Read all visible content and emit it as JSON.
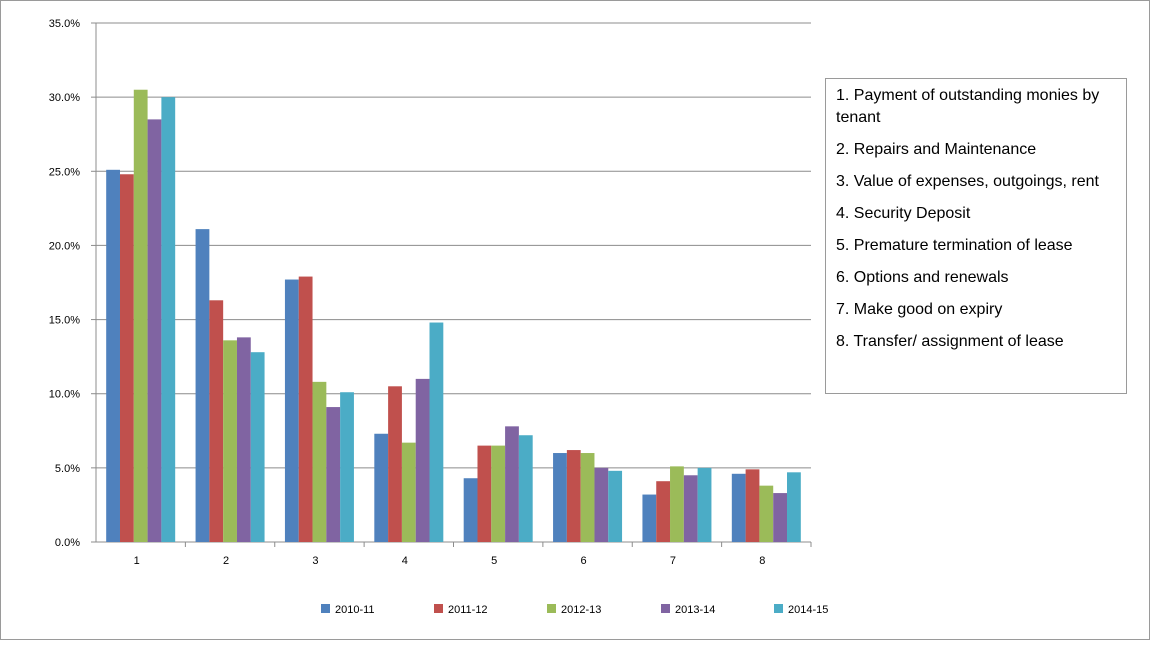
{
  "chart_data": {
    "type": "bar",
    "categories": [
      "1",
      "2",
      "3",
      "4",
      "5",
      "6",
      "7",
      "8"
    ],
    "y_tick_labels": [
      "0.0%",
      "5.0%",
      "10.0%",
      "15.0%",
      "20.0%",
      "25.0%",
      "30.0%",
      "35.0%"
    ],
    "ylim": [
      0,
      35
    ],
    "grid": true,
    "legend_position": "bottom",
    "series": [
      {
        "name": "2010-11",
        "color": "#4F81BD",
        "values": [
          25.1,
          21.1,
          17.7,
          7.3,
          4.3,
          6.0,
          3.2,
          4.6
        ]
      },
      {
        "name": "2011-12",
        "color": "#C0504D",
        "values": [
          24.8,
          16.3,
          17.9,
          10.5,
          6.5,
          6.2,
          4.1,
          4.9
        ]
      },
      {
        "name": "2012-13",
        "color": "#9BBB59",
        "values": [
          30.5,
          13.6,
          10.8,
          6.7,
          6.5,
          6.0,
          5.1,
          3.8
        ]
      },
      {
        "name": "2013-14",
        "color": "#8064A2",
        "values": [
          28.5,
          13.8,
          9.1,
          11.0,
          7.8,
          5.0,
          4.5,
          3.3
        ]
      },
      {
        "name": "2014-15",
        "color": "#4BACC6",
        "values": [
          30.0,
          12.8,
          10.1,
          14.8,
          7.2,
          4.8,
          5.0,
          4.7
        ]
      }
    ]
  },
  "notes": [
    "1. Payment of outstanding monies by tenant",
    "2. Repairs and Maintenance",
    "3. Value of expenses, outgoings, rent",
    "4. Security Deposit",
    "5. Premature termination of lease",
    "6. Options and renewals",
    "7. Make good on expiry",
    "8. Transfer/ assignment of lease"
  ]
}
